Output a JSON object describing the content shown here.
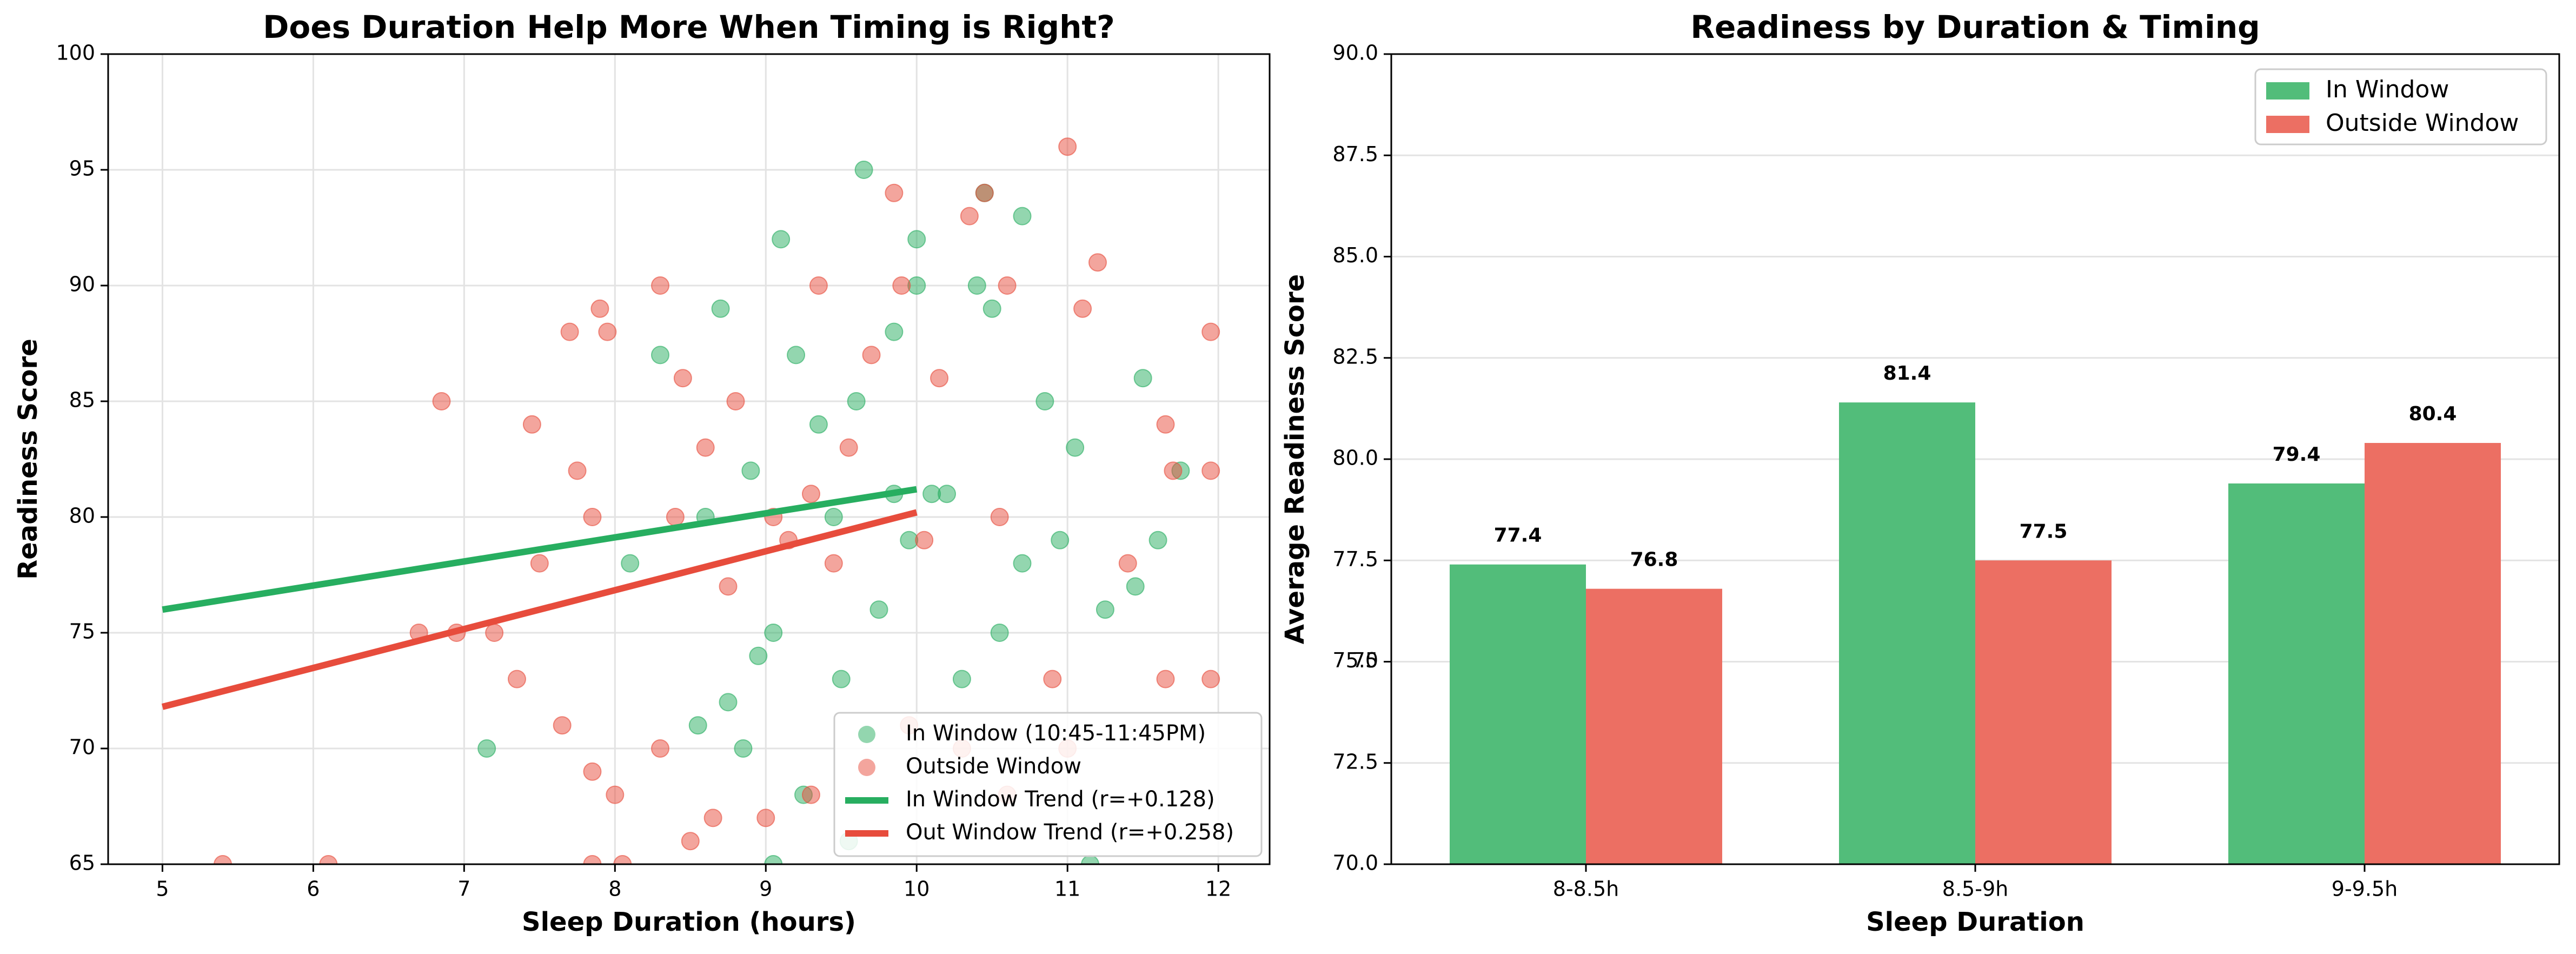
{
  "chart_data": [
    {
      "type": "scatter",
      "title": "Does Duration Help More When Timing is Right?",
      "xlabel": "Sleep Duration (hours)",
      "ylabel": "Readiness Score",
      "xlim": [
        4.64,
        12.34
      ],
      "ylim": [
        65,
        100
      ],
      "xticks": [
        5,
        6,
        7,
        8,
        9,
        10,
        11,
        12
      ],
      "yticks": [
        65,
        70,
        75,
        80,
        85,
        90,
        95,
        100
      ],
      "grid": true,
      "legend": "lower right",
      "series": [
        {
          "name": "In Window (10:45-11:45PM)",
          "color": "#27ae60",
          "type": "scatter",
          "x": [
            9.65,
            10.45,
            10.7,
            9.1,
            10,
            9.2,
            7.15,
            11.15,
            9.05,
            9.6,
            10,
            11.5,
            11.75,
            11.6,
            11.45,
            11.25,
            10.95,
            10.55,
            10.3,
            9.5,
            9.05,
            8.95,
            8.1,
            8.75,
            9.95,
            10.2,
            10.1,
            9.85,
            9.35,
            9.85,
            10.5,
            8.9,
            8.7,
            10.85,
            11.05,
            8.3,
            9.75,
            9.55,
            9.25,
            10.7,
            8.55,
            8.85,
            10.4,
            9.45,
            8.6
          ],
          "values": [
            95,
            94,
            93,
            92,
            92,
            87,
            70,
            65,
            65,
            85,
            90,
            86,
            82,
            79,
            77,
            76,
            79,
            75,
            73,
            73,
            75,
            74,
            78,
            72,
            79,
            81,
            81,
            81,
            84,
            88,
            89,
            82,
            89,
            85,
            83,
            87,
            76,
            66,
            68,
            78,
            71,
            70,
            90,
            80,
            80
          ]
        },
        {
          "name": "Outside Window",
          "color": "#e74c3c",
          "type": "scatter",
          "x": [
            11,
            10.45,
            9.85,
            10.35,
            11.2,
            9.9,
            9.35,
            10.6,
            11.1,
            7.9,
            8.3,
            7.7,
            7.95,
            6.85,
            7.45,
            7.75,
            7.85,
            7.5,
            7.35,
            6.7,
            6.95,
            7.2,
            7.65,
            7.85,
            8,
            7.85,
            8.05,
            5.4,
            6.1,
            8.3,
            8.5,
            8.65,
            9.0,
            9.3,
            9.95,
            10.3,
            10.6,
            10.9,
            11.65,
            11.95,
            11.95,
            11.65,
            11.95,
            11.7,
            11.4,
            11.0,
            9.15,
            9.45,
            8.75,
            8.4,
            8.6,
            9.05,
            9.55,
            10.05,
            10.55,
            9.7,
            9.3,
            8.8,
            10.15,
            8.45
          ],
          "values": [
            96,
            94,
            94,
            93,
            91,
            90,
            90,
            90,
            89,
            89,
            90,
            88,
            88,
            85,
            84,
            82,
            80,
            78,
            73,
            75,
            75,
            75,
            71,
            69,
            68,
            65,
            65,
            65,
            65,
            70,
            66,
            67,
            67,
            68,
            71,
            70,
            68,
            73,
            73,
            73,
            88,
            84,
            82,
            82,
            78,
            70,
            79,
            78,
            77,
            80,
            83,
            80,
            83,
            79,
            80,
            87,
            81,
            85,
            86,
            86
          ]
        },
        {
          "name": "In Window Trend (r=+0.128)",
          "color": "#27ae60",
          "type": "line",
          "x": [
            5,
            10
          ],
          "values": [
            76.0,
            81.2
          ]
        },
        {
          "name": "Out Window Trend (r=+0.258)",
          "color": "#e74c3c",
          "type": "line",
          "x": [
            5,
            10
          ],
          "values": [
            71.8,
            80.2
          ]
        }
      ]
    },
    {
      "type": "bar",
      "title": "Readiness by Duration & Timing",
      "xlabel": "Sleep Duration",
      "ylabel": "Average Readiness Score",
      "categories": [
        "8-8.5h",
        "8.5-9h",
        "9-9.5h"
      ],
      "ylim": [
        70,
        90
      ],
      "yticks": [
        {
          "value": 70,
          "label": "70.0"
        },
        72.5,
        75,
        {
          "value": 75,
          "label": "75.0"
        },
        77.5,
        {
          "value": 80,
          "label": "80.0"
        },
        82.5,
        {
          "value": 85,
          "label": "85.0"
        },
        87.5,
        {
          "value": 90,
          "label": "90.0"
        }
      ],
      "grid": true,
      "legend": "upper right",
      "series": [
        {
          "name": "In Window",
          "color": "#52bd7a",
          "values": [
            77.4,
            81.4,
            79.4
          ]
        },
        {
          "name": "Outside Window",
          "color": "#ec6f63",
          "values": [
            76.8,
            77.5,
            80.4
          ]
        }
      ]
    }
  ]
}
